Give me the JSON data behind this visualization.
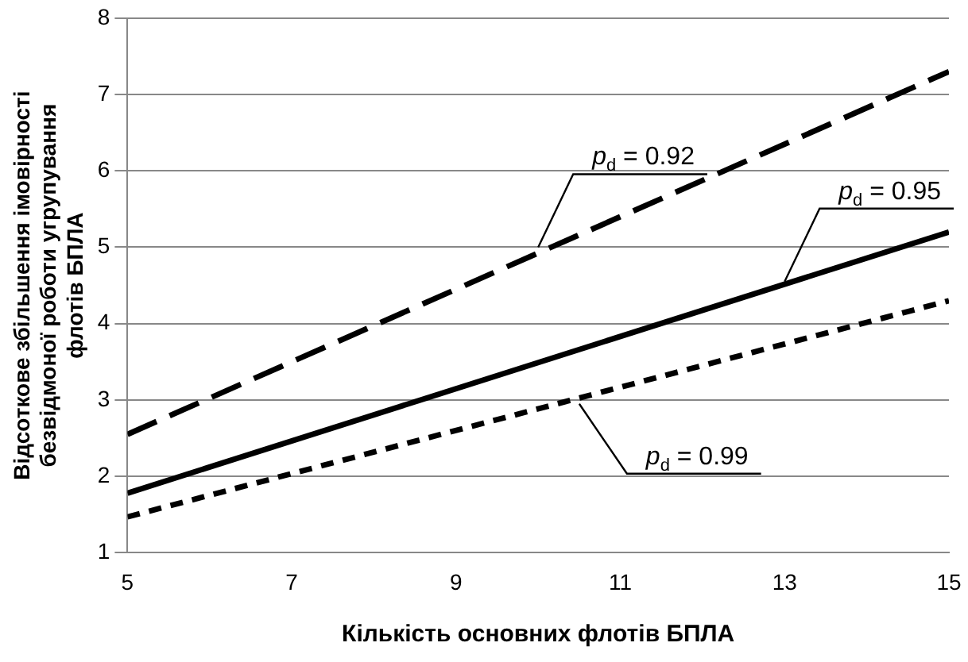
{
  "chart_data": {
    "type": "line",
    "xlabel": "Кількість основних флотів БПЛА",
    "ylabel": "Відсоткове збільшення імовірності безвідмоної роботи угрупування флотів БПЛА",
    "x": [
      5,
      15
    ],
    "series": [
      {
        "color": "#000000",
        "line_style": "dashed",
        "values": [
          2.55,
          7.3
        ]
      },
      {
        "color": "#000000",
        "line_style": "solid",
        "values": [
          1.78,
          5.2
        ]
      },
      {
        "color": "#000000",
        "line_style": "dotted",
        "values": [
          1.47,
          4.3
        ]
      }
    ],
    "xlim": [
      5,
      15
    ],
    "xticks": [
      5,
      7,
      9,
      11,
      13,
      15
    ],
    "ylim": [
      1,
      8
    ],
    "yticks": [
      1,
      2,
      3,
      4,
      5,
      6,
      7,
      8
    ],
    "grid": "y",
    "legend": false,
    "marker": "none",
    "annotations": [
      {
        "text": "p$_{d}$ = 0.92",
        "x": 10,
        "y": 5.0
      },
      {
        "text": "p$_{d}$ = 0.95",
        "x": 13,
        "y": 4.55
      },
      {
        "text": "p$_{d}$ = 0.99",
        "x": 10.5,
        "y": 2.95
      }
    ]
  }
}
